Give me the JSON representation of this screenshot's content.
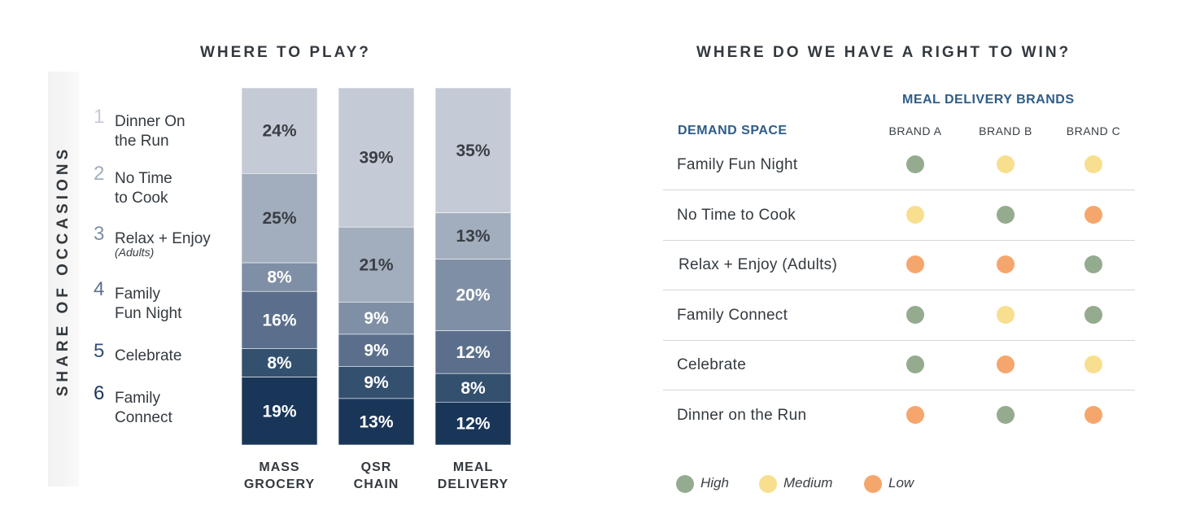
{
  "left_title": "WHERE TO PLAY?",
  "right_title": "WHERE DO WE HAVE A RIGHT TO WIN?",
  "axis_title": "SHARE OF OCCASIONS",
  "occasions": [
    {
      "num": "1",
      "label_line1": "Dinner On",
      "label_line2": "the Run",
      "color": "#c5cbd6"
    },
    {
      "num": "2",
      "label_line1": "No Time",
      "label_line2": "to Cook",
      "color": "#a2adbd"
    },
    {
      "num": "3",
      "label_line1": "Relax + Enjoy",
      "sub": "(Adults)",
      "color": "#7f8fa5"
    },
    {
      "num": "4",
      "label_line1": "Family",
      "label_line2": "Fun Night",
      "color": "#5b6f8c"
    },
    {
      "num": "5",
      "label_line1": "Celebrate",
      "color": "#34506f"
    },
    {
      "num": "6",
      "label_line1": "Family",
      "label_line2": "Connect",
      "color": "#193659"
    }
  ],
  "chart_data": {
    "type": "bar",
    "stacked": true,
    "percent_stacked": true,
    "title": "WHERE TO PLAY?",
    "ylabel": "SHARE OF OCCASIONS",
    "categories": [
      [
        "MASS",
        "GROCERY"
      ],
      [
        "QSR",
        "CHAIN"
      ],
      [
        "MEAL",
        "DELIVERY"
      ]
    ],
    "series": [
      {
        "name": "Dinner On the Run",
        "values": [
          24,
          39,
          35
        ],
        "labels": [
          "24%",
          "39%",
          "35%"
        ]
      },
      {
        "name": "No Time to Cook",
        "values": [
          25,
          21,
          13
        ],
        "labels": [
          "25%",
          "21%",
          "13%"
        ]
      },
      {
        "name": "Relax + Enjoy (Adults)",
        "values": [
          8,
          9,
          20
        ],
        "labels": [
          "8%",
          "9%",
          "20%"
        ]
      },
      {
        "name": "Family Fun Night",
        "values": [
          16,
          9,
          12
        ],
        "labels": [
          "16%",
          "9%",
          "12%"
        ]
      },
      {
        "name": "Celebrate",
        "values": [
          8,
          9,
          8
        ],
        "labels": [
          "8%",
          "9%",
          "8%"
        ]
      },
      {
        "name": "Family Connect",
        "values": [
          19,
          13,
          12
        ],
        "labels": [
          "19%",
          "13%",
          "12%"
        ]
      }
    ],
    "ylim": [
      0,
      100
    ],
    "label_colors": [
      "#3a3f45",
      "#3a3f45",
      "#ffffff",
      "#ffffff",
      "#ffffff",
      "#ffffff"
    ]
  },
  "table": {
    "brands_header": "MEAL DELIVERY BRANDS",
    "demand_header": "DEMAND SPACE",
    "brands": [
      "BRAND A",
      "BRAND B",
      "BRAND C"
    ],
    "rows": [
      {
        "label": "Family Fun Night",
        "ratings": [
          "High",
          "Medium",
          "Medium"
        ]
      },
      {
        "label": "No Time to Cook",
        "ratings": [
          "Medium",
          "High",
          "Low"
        ]
      },
      {
        "label": "Relax + Enjoy (Adults)",
        "ratings": [
          "Low",
          "Low",
          "High"
        ]
      },
      {
        "label": "Family Connect",
        "ratings": [
          "High",
          "Medium",
          "High"
        ]
      },
      {
        "label": "Celebrate",
        "ratings": [
          "High",
          "Low",
          "Medium"
        ]
      },
      {
        "label": "Dinner on the Run",
        "ratings": [
          "Low",
          "High",
          "Low"
        ]
      }
    ]
  },
  "rating_colors": {
    "High": "#94ab8f",
    "Medium": "#f8df8f",
    "Low": "#f5a66d"
  },
  "legend": [
    {
      "key": "High",
      "label": "High"
    },
    {
      "key": "Medium",
      "label": "Medium"
    },
    {
      "key": "Low",
      "label": "Low"
    }
  ]
}
